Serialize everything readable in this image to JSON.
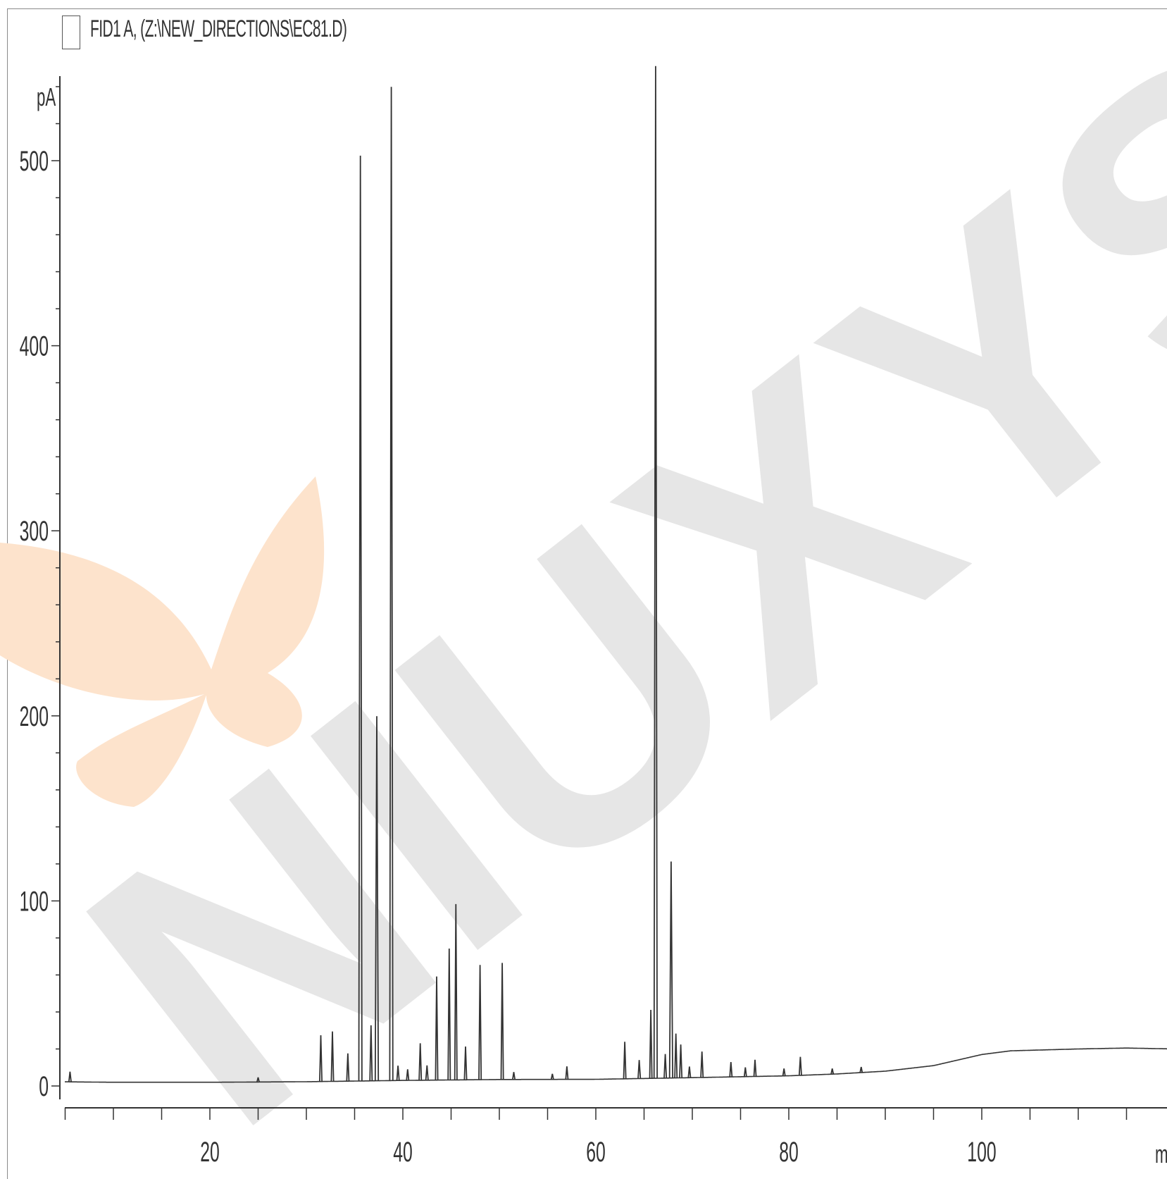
{
  "legend": {
    "label": "FID1 A, (Z:\\NEW_DIRECTIONS\\EC81.D)"
  },
  "watermark": {
    "text": "NIUXYS",
    "color": "#e6e6e6",
    "butterfly_color": "#fde3cc"
  },
  "chart_data": {
    "type": "line",
    "title": "",
    "xlabel": "min",
    "ylabel": "pA",
    "xlim": [
      0,
      125
    ],
    "ylim": [
      0,
      540
    ],
    "x_ticks": [
      20,
      40,
      60,
      80,
      100
    ],
    "y_ticks": [
      0,
      100,
      200,
      300,
      400,
      500
    ],
    "grid": false,
    "line_color": "#333333",
    "baseline": [
      [
        0,
        2.5
      ],
      [
        10,
        2
      ],
      [
        20,
        2
      ],
      [
        30,
        2.3
      ],
      [
        40,
        3
      ],
      [
        50,
        3.5
      ],
      [
        60,
        3.6
      ],
      [
        70,
        4.5
      ],
      [
        80,
        5.5
      ],
      [
        85,
        6.5
      ],
      [
        90,
        8
      ],
      [
        95,
        11
      ],
      [
        100,
        17
      ],
      [
        103,
        19
      ],
      [
        110,
        20
      ],
      [
        115,
        20.5
      ],
      [
        120,
        20
      ],
      [
        125,
        20
      ]
    ],
    "peaks": [
      {
        "rt": 5.5,
        "height": 5.5
      },
      {
        "rt": 25.0,
        "height": 2.5
      },
      {
        "rt": 31.5,
        "height": 25
      },
      {
        "rt": 32.7,
        "height": 27
      },
      {
        "rt": 34.3,
        "height": 15
      },
      {
        "rt": 35.6,
        "height": 500
      },
      {
        "rt": 36.7,
        "height": 30
      },
      {
        "rt": 37.3,
        "height": 197
      },
      {
        "rt": 38.8,
        "height": 537
      },
      {
        "rt": 39.5,
        "height": 8
      },
      {
        "rt": 40.5,
        "height": 6
      },
      {
        "rt": 41.8,
        "height": 20
      },
      {
        "rt": 42.5,
        "height": 8
      },
      {
        "rt": 43.5,
        "height": 56
      },
      {
        "rt": 44.8,
        "height": 71
      },
      {
        "rt": 45.5,
        "height": 95
      },
      {
        "rt": 46.5,
        "height": 18
      },
      {
        "rt": 48.0,
        "height": 62
      },
      {
        "rt": 50.3,
        "height": 63
      },
      {
        "rt": 51.5,
        "height": 4
      },
      {
        "rt": 55.5,
        "height": 3
      },
      {
        "rt": 57.0,
        "height": 7
      },
      {
        "rt": 63.0,
        "height": 20
      },
      {
        "rt": 64.5,
        "height": 10
      },
      {
        "rt": 65.7,
        "height": 37
      },
      {
        "rt": 66.2,
        "height": 547
      },
      {
        "rt": 67.2,
        "height": 13
      },
      {
        "rt": 67.8,
        "height": 117
      },
      {
        "rt": 68.3,
        "height": 24
      },
      {
        "rt": 68.8,
        "height": 18
      },
      {
        "rt": 69.7,
        "height": 6
      },
      {
        "rt": 71.0,
        "height": 14
      },
      {
        "rt": 74.0,
        "height": 8
      },
      {
        "rt": 75.5,
        "height": 5
      },
      {
        "rt": 76.5,
        "height": 9
      },
      {
        "rt": 79.5,
        "height": 4
      },
      {
        "rt": 81.2,
        "height": 10
      },
      {
        "rt": 84.5,
        "height": 3
      },
      {
        "rt": 87.5,
        "height": 3
      }
    ]
  }
}
